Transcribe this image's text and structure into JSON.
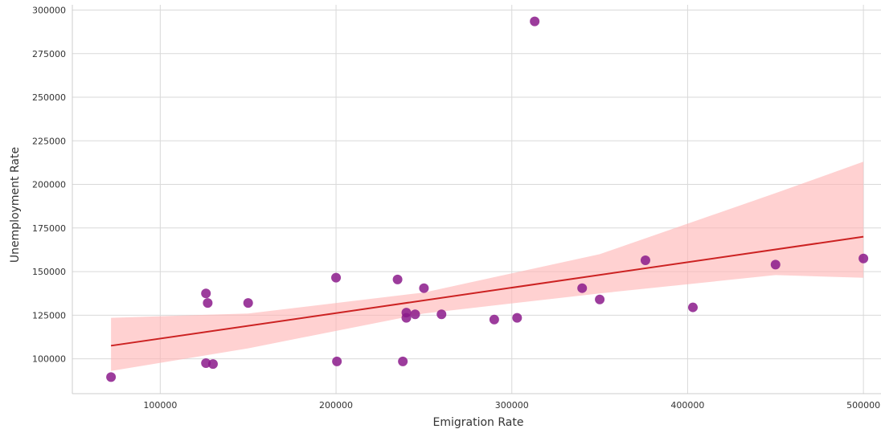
{
  "chart_data": {
    "type": "scatter",
    "title": "",
    "xlabel": "Emigration Rate",
    "ylabel": "Unemployment Rate",
    "xlim": [
      50000,
      510000
    ],
    "ylim": [
      80000,
      303000
    ],
    "xticks": [
      100000,
      200000,
      300000,
      400000,
      500000
    ],
    "xtick_labels": [
      "100000",
      "200000",
      "300000",
      "400000",
      "500000"
    ],
    "yticks": [
      100000,
      125000,
      150000,
      175000,
      200000,
      225000,
      250000,
      275000,
      300000
    ],
    "ytick_labels": [
      "100000",
      "125000",
      "150000",
      "175000",
      "200000",
      "225000",
      "250000",
      "275000",
      "300000"
    ],
    "grid": true,
    "points": [
      {
        "x": 72000,
        "y": 89500
      },
      {
        "x": 126000,
        "y": 137500
      },
      {
        "x": 127000,
        "y": 132000
      },
      {
        "x": 126000,
        "y": 97500
      },
      {
        "x": 130000,
        "y": 97000
      },
      {
        "x": 150000,
        "y": 132000
      },
      {
        "x": 200000,
        "y": 146500
      },
      {
        "x": 200500,
        "y": 98500
      },
      {
        "x": 235000,
        "y": 145500
      },
      {
        "x": 238000,
        "y": 98500
      },
      {
        "x": 240000,
        "y": 126500
      },
      {
        "x": 240000,
        "y": 123500
      },
      {
        "x": 245000,
        "y": 125500
      },
      {
        "x": 250000,
        "y": 140500
      },
      {
        "x": 260000,
        "y": 125500
      },
      {
        "x": 290000,
        "y": 122500
      },
      {
        "x": 303000,
        "y": 123500
      },
      {
        "x": 313000,
        "y": 293500
      },
      {
        "x": 340000,
        "y": 140500
      },
      {
        "x": 350000,
        "y": 134000
      },
      {
        "x": 376000,
        "y": 156500
      },
      {
        "x": 403000,
        "y": 129500
      },
      {
        "x": 450000,
        "y": 154000
      },
      {
        "x": 500000,
        "y": 157500
      }
    ],
    "regression": {
      "x": [
        72000,
        500000
      ],
      "y": [
        107500,
        170000
      ]
    },
    "confidence_band": {
      "x": [
        72000,
        150000,
        250000,
        350000,
        450000,
        500000
      ],
      "upper": [
        123500,
        126000,
        138000,
        160000,
        195000,
        213000
      ],
      "lower": [
        93000,
        106000,
        126000,
        137500,
        148000,
        146500
      ]
    },
    "colors": {
      "points": "#8b1a8b",
      "line": "#cc2222",
      "band": "#ffb3b3",
      "grid": "#d9d9d9"
    }
  }
}
